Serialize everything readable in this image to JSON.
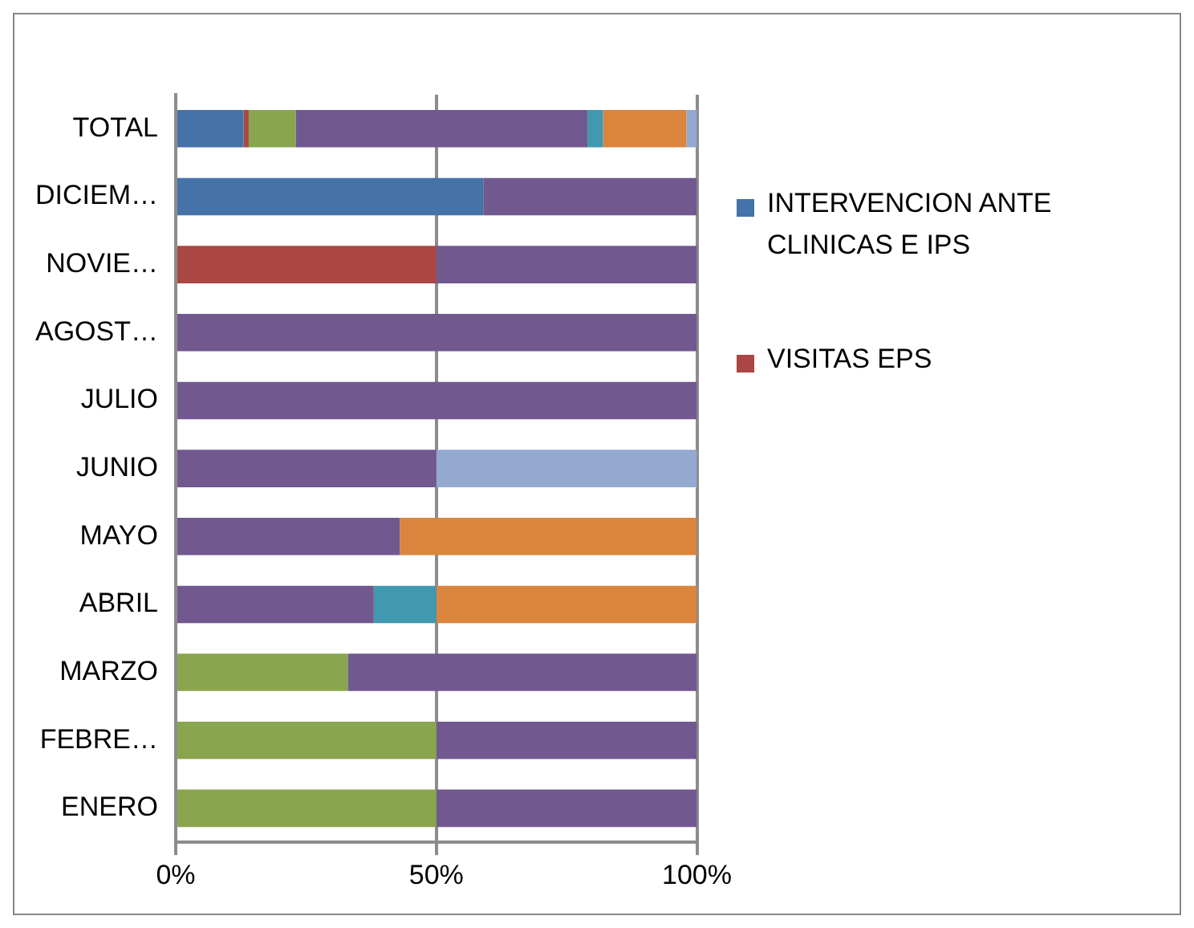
{
  "chart_data": {
    "type": "bar",
    "orientation": "horizontal",
    "stacked": true,
    "categories": [
      "TOTAL",
      "DICIEM…",
      "NOVIE…",
      "AGOST…",
      "JULIO",
      "JUNIO",
      "MAYO",
      "ABRIL",
      "MARZO",
      "FEBRE…",
      "ENERO"
    ],
    "series": [
      {
        "name": "INTERVENCION ANTE CLINICAS E IPS",
        "color": "#4572a7",
        "values": [
          13,
          59,
          0,
          0,
          0,
          0,
          0,
          0,
          0,
          0,
          0
        ]
      },
      {
        "name": "VISITAS EPS",
        "color": "#aa4643",
        "values": [
          1,
          0,
          50,
          0,
          0,
          0,
          0,
          0,
          0,
          0,
          0
        ]
      },
      {
        "color": "#89a54e",
        "values": [
          9,
          0,
          0,
          0,
          0,
          0,
          0,
          0,
          33,
          50,
          50
        ]
      },
      {
        "color": "#71588f",
        "values": [
          56,
          41,
          50,
          100,
          100,
          50,
          43,
          38,
          67,
          50,
          50
        ]
      },
      {
        "color": "#4198af",
        "values": [
          3,
          0,
          0,
          0,
          0,
          0,
          0,
          12,
          0,
          0,
          0
        ]
      },
      {
        "color": "#db843d",
        "values": [
          16,
          0,
          0,
          0,
          0,
          0,
          57,
          50,
          0,
          0,
          0
        ]
      },
      {
        "color": "#93a9cf",
        "values": [
          2,
          0,
          0,
          0,
          0,
          50,
          0,
          0,
          0,
          0,
          0
        ]
      }
    ],
    "xlim": [
      0,
      100
    ],
    "xticks": [
      {
        "value": 0,
        "label": "0%"
      },
      {
        "value": 50,
        "label": "50%"
      },
      {
        "value": 100,
        "label": "100%"
      }
    ],
    "grid": "x",
    "legend": "right"
  }
}
